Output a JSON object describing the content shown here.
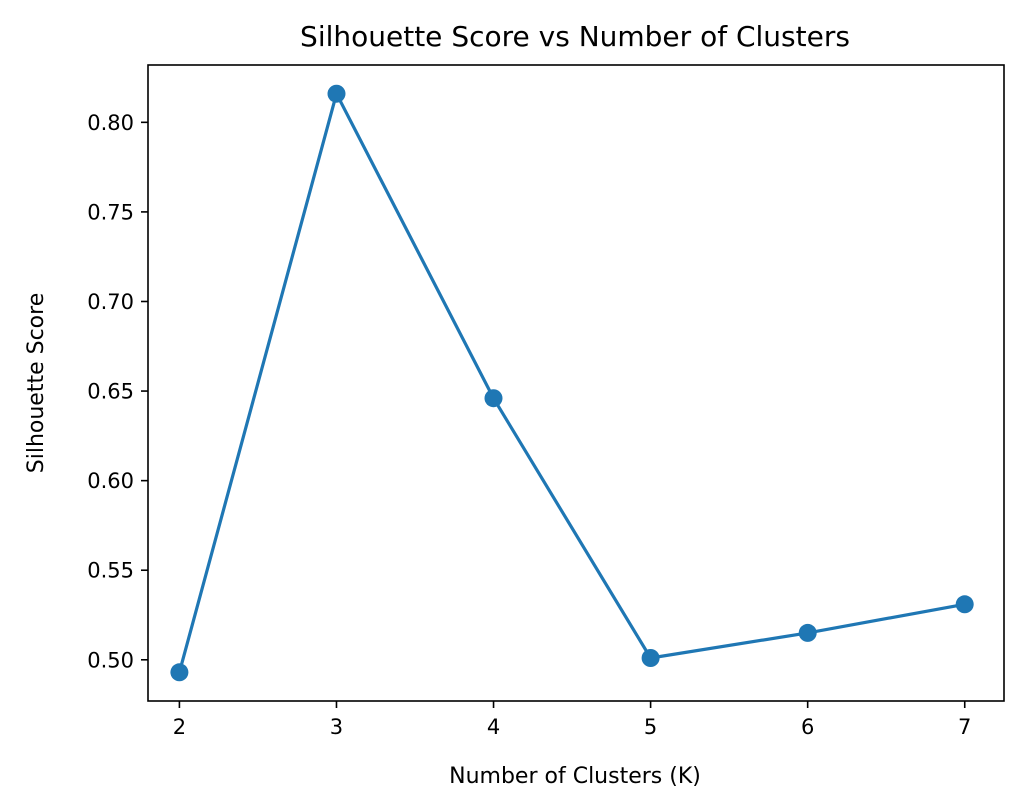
{
  "chart_data": {
    "type": "line",
    "title": "Silhouette Score vs Number of Clusters",
    "xlabel": "Number of Clusters (K)",
    "ylabel": "Silhouette Score",
    "x": [
      2,
      3,
      4,
      5,
      6,
      7
    ],
    "series": [
      {
        "values": [
          0.493,
          0.816,
          0.646,
          0.501,
          0.515,
          0.531
        ]
      }
    ],
    "xticks": [
      2,
      3,
      4,
      5,
      6,
      7
    ],
    "xtick_labels": [
      "2",
      "3",
      "4",
      "5",
      "6",
      "7"
    ],
    "yticks": [
      0.5,
      0.55,
      0.6,
      0.65,
      0.7,
      0.75,
      0.8
    ],
    "ytick_labels": [
      "0.50",
      "0.55",
      "0.60",
      "0.65",
      "0.70",
      "0.75",
      "0.80"
    ],
    "xlim": [
      1.8,
      7.25
    ],
    "ylim": [
      0.477,
      0.832
    ],
    "grid": false,
    "legend": false,
    "colors": {
      "series": "#1f77b4",
      "axes": "#000000"
    }
  }
}
